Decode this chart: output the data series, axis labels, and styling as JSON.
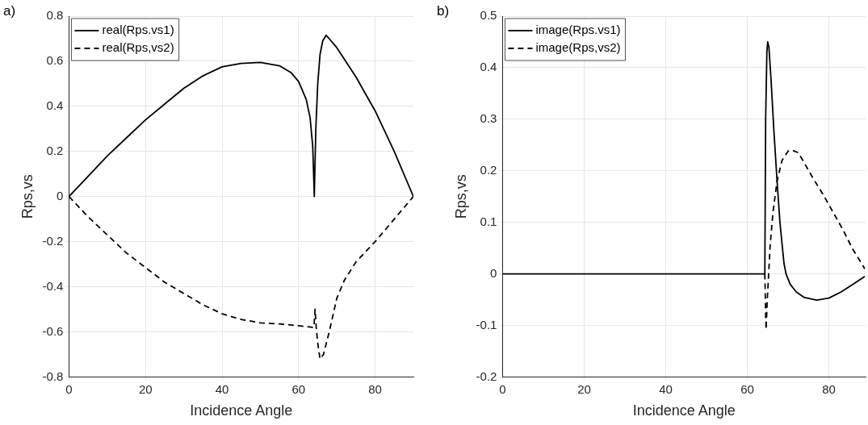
{
  "chart_data": [
    {
      "type": "line",
      "xlabel": "Incidence Angle",
      "ylabel": "Rps,vs",
      "annotations": [
        "a)"
      ],
      "xlim": [
        0,
        90
      ],
      "xticks": [
        0,
        20,
        40,
        60,
        80
      ],
      "ylim": [
        -0.8,
        0.8
      ],
      "yticks": [
        -0.8,
        -0.6,
        -0.4,
        -0.2,
        0,
        0.2,
        0.4,
        0.6,
        0.8
      ],
      "grid": true,
      "legend": "top left",
      "marker": "none",
      "series": [
        {
          "name": "real(Rps.vs1)",
          "color": "#000000",
          "line_style": "solid",
          "x": [
            0,
            5,
            10,
            15,
            20,
            25,
            30,
            35,
            40,
            45,
            50,
            55,
            58,
            60,
            62,
            63,
            63.7,
            64.1,
            64.5,
            65,
            65.6,
            66.3,
            67.2,
            68,
            70,
            75,
            80,
            85,
            90
          ],
          "values": [
            0,
            0.09,
            0.18,
            0.26,
            0.34,
            0.41,
            0.48,
            0.535,
            0.575,
            0.59,
            0.595,
            0.58,
            0.55,
            0.51,
            0.43,
            0.35,
            0.22,
            0,
            0.3,
            0.5,
            0.63,
            0.69,
            0.715,
            0.7,
            0.66,
            0.53,
            0.38,
            0.2,
            0
          ]
        },
        {
          "name": "real(Rps,vs2)",
          "color": "#000000",
          "line_style": "dashed",
          "x": [
            0,
            5,
            10,
            15,
            20,
            25,
            30,
            35,
            40,
            45,
            50,
            55,
            60,
            64,
            64.3,
            64.6,
            65,
            65.6,
            66.5,
            68,
            70,
            72,
            75,
            80,
            85,
            90
          ],
          "values": [
            0,
            -0.09,
            -0.17,
            -0.25,
            -0.315,
            -0.38,
            -0.43,
            -0.48,
            -0.52,
            -0.545,
            -0.56,
            -0.565,
            -0.573,
            -0.58,
            -0.5,
            -0.58,
            -0.65,
            -0.72,
            -0.7,
            -0.6,
            -0.45,
            -0.37,
            -0.29,
            -0.2,
            -0.1,
            0
          ]
        }
      ]
    },
    {
      "type": "line",
      "xlabel": "Incidence Angle",
      "ylabel": "Rps,vs",
      "annotations": [
        "b)"
      ],
      "xlim": [
        0,
        89
      ],
      "xticks": [
        0,
        20,
        40,
        60,
        80
      ],
      "ylim": [
        -0.2,
        0.5
      ],
      "yticks": [
        -0.2,
        -0.1,
        0,
        0.1,
        0.2,
        0.3,
        0.4,
        0.5
      ],
      "grid": true,
      "legend": "top left",
      "marker": "none",
      "series": [
        {
          "name": "image(Rps.vs1)",
          "color": "#000000",
          "line_style": "solid",
          "x": [
            0,
            64.3,
            64.5,
            64.8,
            65,
            65.3,
            65.8,
            66.5,
            67.3,
            68,
            69,
            69.5,
            70.5,
            72,
            74,
            77,
            80,
            83,
            86,
            88.8
          ],
          "values": [
            0,
            0,
            0.3,
            0.43,
            0.45,
            0.44,
            0.38,
            0.28,
            0.18,
            0.1,
            0.02,
            0,
            -0.02,
            -0.035,
            -0.046,
            -0.051,
            -0.047,
            -0.035,
            -0.02,
            -0.005
          ]
        },
        {
          "name": "image(Rps,vs2)",
          "color": "#000000",
          "line_style": "dashed",
          "x": [
            64.3,
            64.5,
            64.6,
            64.9,
            65.6,
            66.3,
            67.3,
            68.5,
            70,
            71,
            72.5,
            74,
            76,
            78.5,
            81,
            83.5,
            85.7,
            88.8
          ],
          "values": [
            0,
            -0.08,
            -0.108,
            -0.05,
            0.055,
            0.12,
            0.18,
            0.22,
            0.238,
            0.24,
            0.235,
            0.215,
            0.187,
            0.155,
            0.12,
            0.085,
            0.05,
            0.01
          ]
        }
      ]
    }
  ]
}
